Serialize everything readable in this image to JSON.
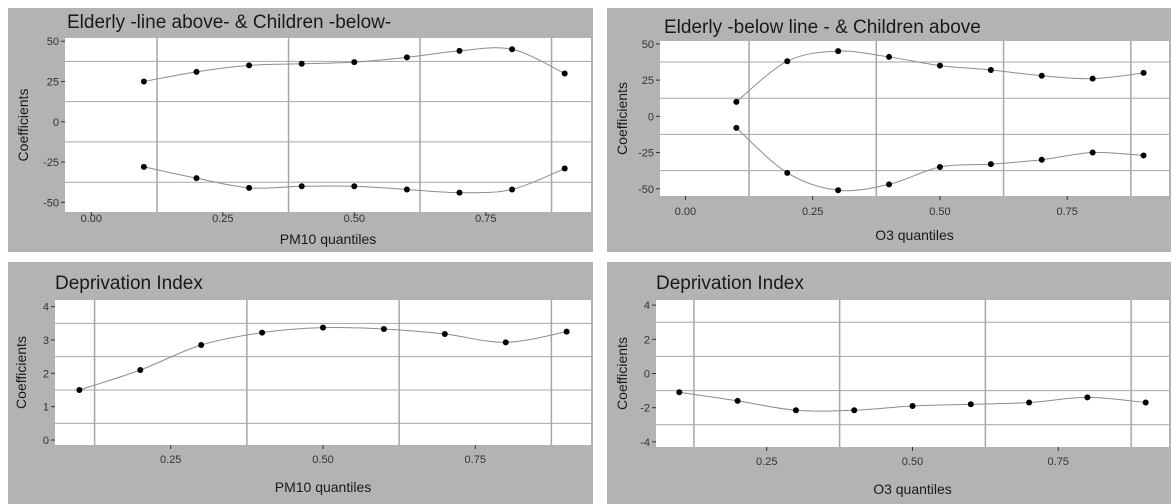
{
  "chart_data": [
    {
      "type": "line",
      "title": "Elderly -line above- & Children -below-",
      "xlabel": "PM10 quantiles",
      "ylabel": "Coefficients",
      "xlim": [
        -0.05,
        0.95
      ],
      "ylim": [
        -56,
        52
      ],
      "xticks": [
        0.0,
        0.25,
        0.5,
        0.75
      ],
      "xtick_labels": [
        "0.00",
        "0.25",
        "0.50",
        "0.75"
      ],
      "yticks": [
        -50,
        -25,
        0,
        25,
        50
      ],
      "ytick_labels": [
        "-50",
        "-25",
        "0",
        "25",
        "50"
      ],
      "x": [
        0.1,
        0.2,
        0.3,
        0.4,
        0.5,
        0.6,
        0.7,
        0.8,
        0.9
      ],
      "series": [
        {
          "name": "Elderly",
          "values": [
            25,
            31,
            35,
            36,
            37,
            40,
            44,
            45,
            30
          ]
        },
        {
          "name": "Children",
          "values": [
            -28,
            -35,
            -41,
            -40,
            -40,
            -42,
            -44,
            -42,
            -29
          ]
        }
      ],
      "grid": true
    },
    {
      "type": "line",
      "title": "Elderly -below line - & Children above",
      "xlabel": "O3 quantiles",
      "ylabel": "Coefficients",
      "xlim": [
        -0.05,
        0.95
      ],
      "ylim": [
        -55,
        52
      ],
      "xticks": [
        0.0,
        0.25,
        0.5,
        0.75
      ],
      "xtick_labels": [
        "0.00",
        "0.25",
        "0.50",
        "0.75"
      ],
      "yticks": [
        -50,
        -25,
        0,
        25,
        50
      ],
      "ytick_labels": [
        "-50",
        "-25",
        "0",
        "25",
        "50"
      ],
      "x": [
        0.1,
        0.2,
        0.3,
        0.4,
        0.5,
        0.6,
        0.7,
        0.8,
        0.9
      ],
      "series": [
        {
          "name": "Children",
          "values": [
            10,
            38,
            45,
            41,
            35,
            32,
            28,
            26,
            30
          ]
        },
        {
          "name": "Elderly",
          "values": [
            -8,
            -39,
            -51,
            -47,
            -35,
            -33,
            -30,
            -25,
            -27
          ]
        }
      ],
      "grid": true
    },
    {
      "type": "line",
      "title": "Deprivation Index",
      "xlabel": "PM10 quantiles",
      "ylabel": "Coefficients",
      "xlim": [
        0.06,
        0.94
      ],
      "ylim": [
        -0.15,
        4.2
      ],
      "xticks": [
        0.25,
        0.5,
        0.75
      ],
      "xtick_labels": [
        "0.25",
        "0.50",
        "0.75"
      ],
      "yticks": [
        0,
        1,
        2,
        3,
        4
      ],
      "ytick_labels": [
        "0",
        "1",
        "2",
        "3",
        "4"
      ],
      "x": [
        0.1,
        0.2,
        0.3,
        0.4,
        0.5,
        0.6,
        0.7,
        0.8,
        0.9
      ],
      "series": [
        {
          "values": [
            1.5,
            2.1,
            2.85,
            3.22,
            3.37,
            3.33,
            3.18,
            2.93,
            3.25
          ]
        }
      ],
      "grid": true
    },
    {
      "type": "line",
      "title": "Deprivation Index",
      "xlabel": "O3 quantiles",
      "ylabel": "Coefficients",
      "xlim": [
        0.06,
        0.94
      ],
      "ylim": [
        -4.3,
        4.3
      ],
      "xticks": [
        0.25,
        0.5,
        0.75
      ],
      "xtick_labels": [
        "0.25",
        "0.50",
        "0.75"
      ],
      "yticks": [
        -4,
        -2,
        0,
        2,
        4
      ],
      "ytick_labels": [
        "-4",
        "-2",
        "0",
        "2",
        "4"
      ],
      "x": [
        0.1,
        0.2,
        0.3,
        0.4,
        0.5,
        0.6,
        0.7,
        0.8,
        0.9
      ],
      "series": [
        {
          "values": [
            -1.1,
            -1.6,
            -2.15,
            -2.15,
            -1.9,
            -1.8,
            -1.7,
            -1.4,
            -1.7
          ]
        }
      ],
      "grid": true
    }
  ]
}
